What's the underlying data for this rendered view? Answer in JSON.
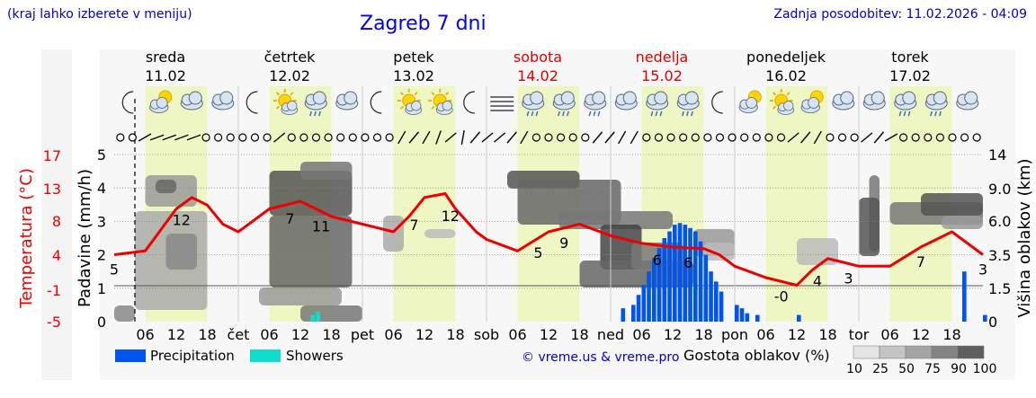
{
  "header": {
    "region_note": "(kraj lahko izberete v meniju)",
    "title": "Zagreb 7 dni",
    "updated": "Zadnja posodobitev: 11.02.2026 - 04:09"
  },
  "colors": {
    "temperature_line": "#ee0000",
    "precipitation": "#0055ee",
    "showers": "#11ddcc",
    "day_band": "#eef7c4",
    "weekend": "#dd0000",
    "axis_blue": "#0000cc"
  },
  "days": [
    {
      "name": "sreda",
      "date": "11.02",
      "weekend": false
    },
    {
      "name": "četrtek",
      "date": "12.02",
      "weekend": false
    },
    {
      "name": "petek",
      "date": "13.02",
      "weekend": false
    },
    {
      "name": "sobota",
      "date": "14.02",
      "weekend": true
    },
    {
      "name": "nedelja",
      "date": "15.02",
      "weekend": true
    },
    {
      "name": "ponedeljek",
      "date": "16.02",
      "weekend": false
    },
    {
      "name": "torek",
      "date": "17.02",
      "weekend": false
    }
  ],
  "icons": [
    "moon-icon",
    "partly-cloudy-icon",
    "cloudy-icon",
    "cloudy-icon",
    "moon-icon",
    "sun-icon",
    "rain-icon",
    "cloudy-icon",
    "moon-icon",
    "sun-icon",
    "sun-icon",
    "moon-icon",
    "fog-icon",
    "rain-icon",
    "rain-icon",
    "rain-icon",
    "cloudy-icon",
    "rain-icon",
    "rain-icon",
    "moon-icon",
    "partly-cloudy-icon",
    "sun-icon",
    "partly-cloudy-icon",
    "cloudy-icon",
    "cloudy-icon",
    "rain-icon",
    "rain-icon",
    "cloudy-icon"
  ],
  "legend": {
    "precipitation": "Precipitation",
    "showers": "Showers",
    "credit": "© vreme.us & vreme.pro",
    "cloud_title": "Gostota oblakov (%)",
    "cloud_levels": [
      "10",
      "25",
      "50",
      "75",
      "90",
      "100"
    ]
  },
  "chart_data": {
    "type": "line",
    "x_tick_labels": [
      "06",
      "12",
      "18",
      "čet",
      "06",
      "12",
      "18",
      "pet",
      "06",
      "12",
      "18",
      "sob",
      "06",
      "12",
      "18",
      "ned",
      "06",
      "12",
      "18",
      "pon",
      "06",
      "12",
      "18",
      "tor",
      "06",
      "12",
      "18"
    ],
    "y_left_precip": {
      "label": "Padavine (mm/h)",
      "ticks": [
        "0",
        "1",
        "2",
        "3",
        "4",
        "5"
      ],
      "range": [
        0,
        5
      ]
    },
    "y_left_temp": {
      "label": "Temperatura (°C)",
      "ticks": [
        "-5",
        "-1",
        "4",
        "8",
        "13",
        "17"
      ]
    },
    "y_right_cloud": {
      "label": "Višina oblakov (km)",
      "ticks": [
        "0",
        "1.5",
        "3.5",
        "6.0",
        "9.0",
        "14"
      ]
    },
    "series": [
      {
        "name": "temperature",
        "unit": "°C",
        "x_hours": [
          0,
          6,
          12,
          15,
          18,
          21,
          24,
          30,
          36,
          42,
          48,
          54,
          57,
          60,
          64,
          66,
          70,
          72,
          78,
          84,
          90,
          96,
          102,
          108,
          114,
          117,
          120,
          126,
          132,
          135,
          138,
          141,
          144,
          150,
          156,
          162,
          168
        ],
        "y": [
          4,
          4.5,
          10,
          11.5,
          10.5,
          8,
          7,
          10,
          11,
          9,
          8,
          7,
          9,
          11.5,
          12,
          10,
          7,
          6,
          4.5,
          7,
          8,
          6.5,
          5.5,
          5,
          4.8,
          4,
          2.5,
          1,
          0,
          2,
          3.5,
          3,
          2.5,
          2.5,
          5,
          7,
          4
        ]
      },
      {
        "name": "Precipitation",
        "unit": "mm/h",
        "x_hours": [
          98,
          100,
          101,
          102,
          103,
          104,
          105,
          106,
          107,
          108,
          109,
          110,
          111,
          112,
          113,
          114,
          115,
          116,
          117,
          120,
          121,
          122,
          124,
          132,
          164,
          168
        ],
        "y": [
          0.4,
          0.5,
          0.8,
          1.1,
          1.5,
          1.9,
          2.2,
          2.5,
          2.7,
          2.9,
          2.95,
          2.9,
          2.8,
          2.7,
          2.4,
          2.0,
          1.5,
          1.2,
          0.9,
          0.5,
          0.4,
          0.25,
          0.2,
          0.2,
          1.5,
          0.2
        ]
      },
      {
        "name": "Showers",
        "unit": "mm/h",
        "x_hours": [
          38,
          39
        ],
        "y": [
          0.2,
          0.3
        ]
      }
    ],
    "temp_labels": [
      {
        "x_hours": 0,
        "text": "5"
      },
      {
        "x_hours": 13,
        "text": "12"
      },
      {
        "x_hours": 34,
        "text": "7"
      },
      {
        "x_hours": 40,
        "text": "11"
      },
      {
        "x_hours": 58,
        "text": "7"
      },
      {
        "x_hours": 65,
        "text": "12"
      },
      {
        "x_hours": 82,
        "text": "5"
      },
      {
        "x_hours": 87,
        "text": "9"
      },
      {
        "x_hours": 105,
        "text": "6"
      },
      {
        "x_hours": 111,
        "text": "6"
      },
      {
        "x_hours": 129,
        "text": "-0"
      },
      {
        "x_hours": 136,
        "text": "4"
      },
      {
        "x_hours": 142,
        "text": "3"
      },
      {
        "x_hours": 156,
        "text": "7"
      },
      {
        "x_hours": 168,
        "text": "3"
      }
    ],
    "grid": true
  }
}
